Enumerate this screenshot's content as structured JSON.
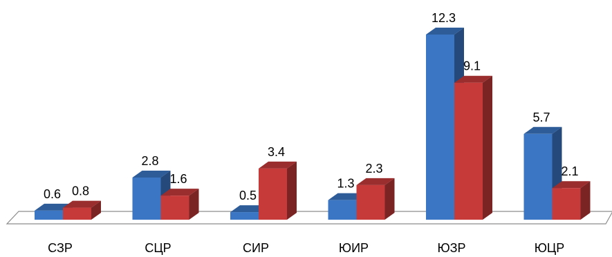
{
  "chart_data": {
    "type": "bar",
    "style": "3d-clustered-column",
    "categories": [
      "СЗР",
      "СЦР",
      "СИР",
      "ЮИР",
      "ЮЗР",
      "ЮЦР"
    ],
    "series": [
      {
        "values": [
          0.6,
          2.8,
          0.5,
          1.3,
          12.3,
          5.7
        ],
        "color": "#3A76C4"
      },
      {
        "values": [
          0.8,
          1.6,
          3.4,
          2.3,
          9.1,
          2.1
        ],
        "color": "#C63A3A"
      }
    ],
    "title": "",
    "xlabel": "",
    "ylabel": "",
    "ylim": [
      0,
      12.3
    ],
    "grid": false,
    "legend": "none",
    "show_data_labels": true
  }
}
